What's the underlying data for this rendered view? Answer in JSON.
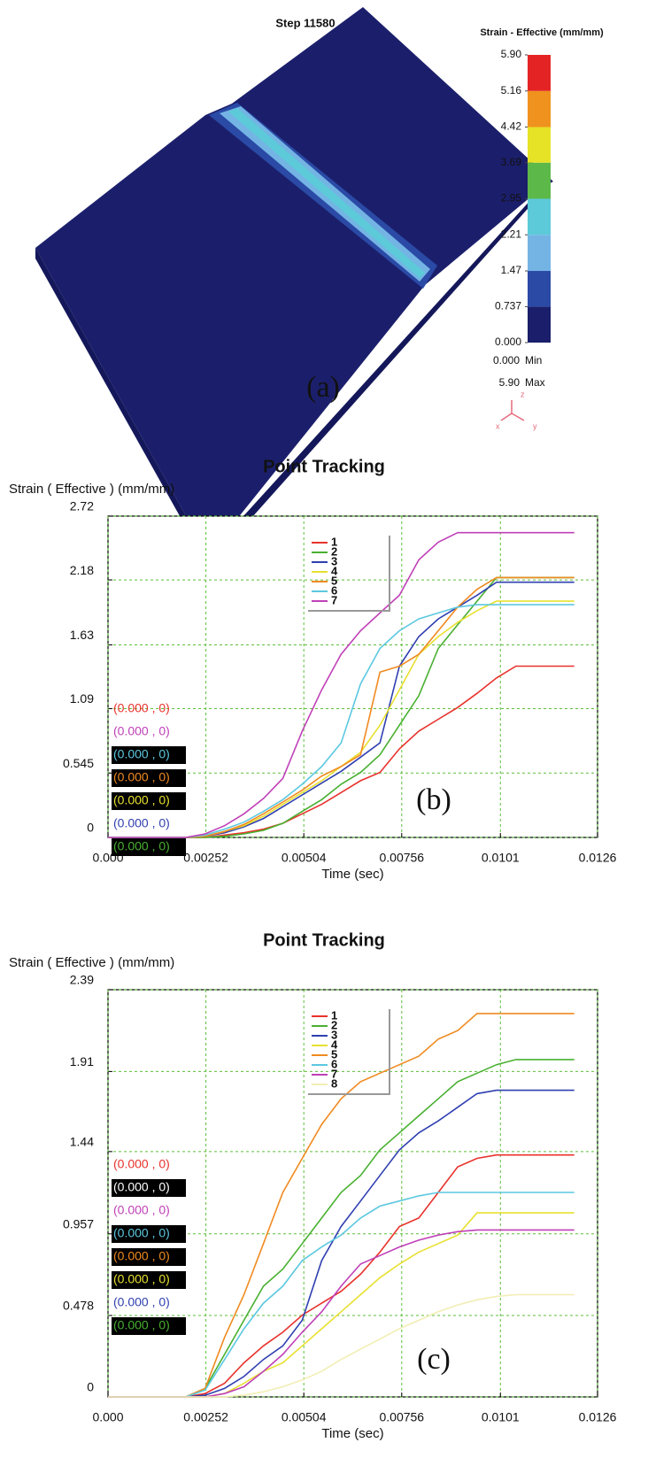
{
  "panel_a": {
    "step_label": "Step 11580",
    "colorbar": {
      "title": "Strain - Effective (mm/mm)",
      "colors": [
        "#1b1f6b",
        "#2a4aa6",
        "#74b4e4",
        "#5ccad8",
        "#5cb848",
        "#e6e226",
        "#f0921e",
        "#e42424"
      ],
      "ticks": [
        {
          "value": 0,
          "label": "0.000"
        },
        {
          "value": 0.737,
          "label": "0.737"
        },
        {
          "value": 1.47,
          "label": "1.47"
        },
        {
          "value": 2.21,
          "label": "2.21"
        },
        {
          "value": 2.95,
          "label": "2.95"
        },
        {
          "value": 3.69,
          "label": "3.69"
        },
        {
          "value": 4.42,
          "label": "4.42"
        },
        {
          "value": 5.16,
          "label": "5.16"
        },
        {
          "value": 5.9,
          "label": "5.90"
        }
      ]
    },
    "min": "0.000",
    "min_text": "Min",
    "max": "5.90",
    "max_text": "Max",
    "triad": [
      "z",
      "x",
      "y"
    ],
    "panel_label": "(a)"
  },
  "chart_data": [
    {
      "type": "line",
      "title": "Point Tracking",
      "y_label": "Strain ( Effective )  (mm/mm)",
      "x_label": "Time (sec)",
      "panel_label": "(b)",
      "x": [
        0,
        0.001,
        0.002,
        0.0025,
        0.003,
        0.0035,
        0.004,
        0.0045,
        0.005,
        0.0055,
        0.006,
        0.0065,
        0.007,
        0.0075,
        0.008,
        0.0085,
        0.009,
        0.0095,
        0.01,
        0.0105,
        0.011,
        0.012
      ],
      "xlim": [
        0,
        0.0126
      ],
      "ylim": [
        0,
        2.72
      ],
      "xticks": [
        {
          "value": 0,
          "label": "0.000"
        },
        0.00252,
        0.00504,
        0.00756,
        0.0101,
        0.0126
      ],
      "yticks": [
        0,
        0.545,
        1.09,
        1.63,
        2.18,
        2.72
      ],
      "grid": true,
      "grid_color": "#5cbf3a",
      "series": [
        {
          "name": "1",
          "color": "#e8322c",
          "values": [
            0,
            0,
            0,
            0,
            0.02,
            0.04,
            0.07,
            0.12,
            0.2,
            0.28,
            0.38,
            0.48,
            0.55,
            0.75,
            0.9,
            1.0,
            1.1,
            1.22,
            1.35,
            1.45,
            1.45,
            1.45
          ]
        },
        {
          "name": "2",
          "color": "#48b030",
          "values": [
            0,
            0,
            0,
            0,
            0.01,
            0.03,
            0.06,
            0.12,
            0.22,
            0.32,
            0.45,
            0.55,
            0.7,
            0.95,
            1.2,
            1.6,
            1.8,
            2.0,
            2.2,
            2.2,
            2.2,
            2.2
          ]
        },
        {
          "name": "3",
          "color": "#2f3fb0",
          "values": [
            0,
            0,
            0,
            0.01,
            0.04,
            0.09,
            0.16,
            0.26,
            0.36,
            0.46,
            0.56,
            0.68,
            0.8,
            1.45,
            1.7,
            1.85,
            1.95,
            2.05,
            2.16,
            2.16,
            2.16,
            2.16
          ]
        },
        {
          "name": "4",
          "color": "#e8e030",
          "values": [
            0,
            0,
            0,
            0.01,
            0.05,
            0.1,
            0.18,
            0.28,
            0.38,
            0.48,
            0.6,
            0.72,
            0.95,
            1.25,
            1.55,
            1.7,
            1.82,
            1.92,
            2.0,
            2.0,
            2.0,
            2.0
          ]
        },
        {
          "name": "5",
          "color": "#f08a20",
          "values": [
            0,
            0,
            0,
            0.01,
            0.05,
            0.11,
            0.2,
            0.3,
            0.4,
            0.52,
            0.6,
            0.7,
            1.4,
            1.45,
            1.55,
            1.75,
            1.95,
            2.1,
            2.2,
            2.2,
            2.2,
            2.2
          ]
        },
        {
          "name": "6",
          "color": "#5cc8e0",
          "values": [
            0,
            0,
            0,
            0.02,
            0.07,
            0.13,
            0.22,
            0.32,
            0.45,
            0.6,
            0.8,
            1.3,
            1.6,
            1.75,
            1.85,
            1.9,
            1.95,
            1.97,
            1.97,
            1.97,
            1.97,
            1.97
          ]
        },
        {
          "name": "7",
          "color": "#c040b8",
          "values": [
            0,
            0,
            0,
            0.03,
            0.1,
            0.2,
            0.33,
            0.5,
            0.9,
            1.25,
            1.55,
            1.75,
            1.9,
            2.05,
            2.35,
            2.5,
            2.58,
            2.58,
            2.58,
            2.58,
            2.58,
            2.58
          ]
        }
      ],
      "annotations": [
        {
          "text": "(0.000 , 0)",
          "color": "#e8322c",
          "background": null
        },
        {
          "text": "(0.000 , 0)",
          "color": "#c040b8",
          "background": null
        },
        {
          "text": "(0.000 , 0)",
          "color": "#5cc8e0",
          "background": "#000000"
        },
        {
          "text": "(0.000 , 0)",
          "color": "#f08a20",
          "background": "#000000"
        },
        {
          "text": "(0.000 , 0)",
          "color": "#e8e030",
          "background": "#000000"
        },
        {
          "text": "(0.000 , 0)",
          "color": "#2f3fb0",
          "background": null
        },
        {
          "text": "(0.000 , 0)",
          "color": "#48b030",
          "background": "#000000"
        }
      ]
    },
    {
      "type": "line",
      "title": "Point Tracking",
      "y_label": "Strain ( Effective )  (mm/mm)",
      "x_label": "Time (sec)",
      "panel_label": "(c)",
      "x": [
        0,
        0.001,
        0.002,
        0.0025,
        0.003,
        0.0035,
        0.004,
        0.0045,
        0.005,
        0.0055,
        0.006,
        0.0065,
        0.007,
        0.0075,
        0.008,
        0.0085,
        0.009,
        0.0095,
        0.01,
        0.0105,
        0.011,
        0.012
      ],
      "xlim": [
        0,
        0.0126
      ],
      "ylim": [
        0,
        2.39
      ],
      "xticks": [
        {
          "value": 0,
          "label": "0.000"
        },
        0.00252,
        0.00504,
        0.00756,
        0.0101,
        0.0126
      ],
      "yticks": [
        0,
        0.478,
        0.957,
        1.44,
        1.91,
        2.39
      ],
      "grid": true,
      "grid_color": "#5cbf3a",
      "series": [
        {
          "name": "1",
          "color": "#e8322c",
          "values": [
            0,
            0,
            0,
            0.02,
            0.08,
            0.2,
            0.3,
            0.38,
            0.48,
            0.55,
            0.62,
            0.72,
            0.85,
            1.0,
            1.05,
            1.2,
            1.35,
            1.4,
            1.42,
            1.42,
            1.42,
            1.42
          ]
        },
        {
          "name": "2",
          "color": "#48b030",
          "values": [
            0,
            0,
            0,
            0.05,
            0.25,
            0.45,
            0.65,
            0.75,
            0.9,
            1.05,
            1.2,
            1.3,
            1.45,
            1.55,
            1.65,
            1.75,
            1.85,
            1.9,
            1.95,
            1.98,
            1.98,
            1.98
          ]
        },
        {
          "name": "3",
          "color": "#2f3fb0",
          "values": [
            0,
            0,
            0,
            0.01,
            0.05,
            0.12,
            0.22,
            0.3,
            0.45,
            0.8,
            1.0,
            1.15,
            1.3,
            1.45,
            1.55,
            1.62,
            1.7,
            1.78,
            1.8,
            1.8,
            1.8,
            1.8
          ]
        },
        {
          "name": "4",
          "color": "#e8e030",
          "values": [
            0,
            0,
            0,
            0,
            0.02,
            0.08,
            0.15,
            0.2,
            0.3,
            0.4,
            0.5,
            0.6,
            0.7,
            0.78,
            0.85,
            0.9,
            0.95,
            1.08,
            1.08,
            1.08,
            1.08,
            1.08
          ]
        },
        {
          "name": "5",
          "color": "#f08a20",
          "values": [
            0,
            0,
            0,
            0.05,
            0.35,
            0.6,
            0.9,
            1.2,
            1.4,
            1.6,
            1.75,
            1.85,
            1.9,
            1.95,
            2.0,
            2.1,
            2.15,
            2.25,
            2.25,
            2.25,
            2.25,
            2.25
          ]
        },
        {
          "name": "6",
          "color": "#5cc8e0",
          "values": [
            0,
            0,
            0,
            0.04,
            0.22,
            0.4,
            0.55,
            0.65,
            0.8,
            0.88,
            0.95,
            1.05,
            1.12,
            1.15,
            1.18,
            1.2,
            1.2,
            1.2,
            1.2,
            1.2,
            1.2,
            1.2
          ]
        },
        {
          "name": "7",
          "color": "#c040b8",
          "values": [
            0,
            0,
            0,
            0,
            0.02,
            0.06,
            0.15,
            0.25,
            0.38,
            0.5,
            0.65,
            0.78,
            0.83,
            0.88,
            0.92,
            0.95,
            0.97,
            0.98,
            0.98,
            0.98,
            0.98,
            0.98
          ]
        },
        {
          "name": "8",
          "color": "#f2eeb4",
          "values": [
            0,
            0,
            0,
            0,
            0,
            0.01,
            0.03,
            0.06,
            0.1,
            0.15,
            0.22,
            0.28,
            0.34,
            0.4,
            0.45,
            0.5,
            0.54,
            0.57,
            0.59,
            0.6,
            0.6,
            0.6
          ]
        }
      ],
      "annotations": [
        {
          "text": "(0.000 , 0)",
          "color": "#e8322c",
          "background": null
        },
        {
          "text": "(0.000 , 0)",
          "color": "#ffffff",
          "background": "#000000"
        },
        {
          "text": "(0.000 , 0)",
          "color": "#c040b8",
          "background": null
        },
        {
          "text": "(0.000 , 0)",
          "color": "#5cc8e0",
          "background": "#000000"
        },
        {
          "text": "(0.000 , 0)",
          "color": "#f08a20",
          "background": "#000000"
        },
        {
          "text": "(0.000 , 0)",
          "color": "#e8e030",
          "background": "#000000"
        },
        {
          "text": "(0.000 , 0)",
          "color": "#2f3fb0",
          "background": null
        },
        {
          "text": "(0.000 , 0)",
          "color": "#48b030",
          "background": "#000000"
        }
      ]
    }
  ]
}
